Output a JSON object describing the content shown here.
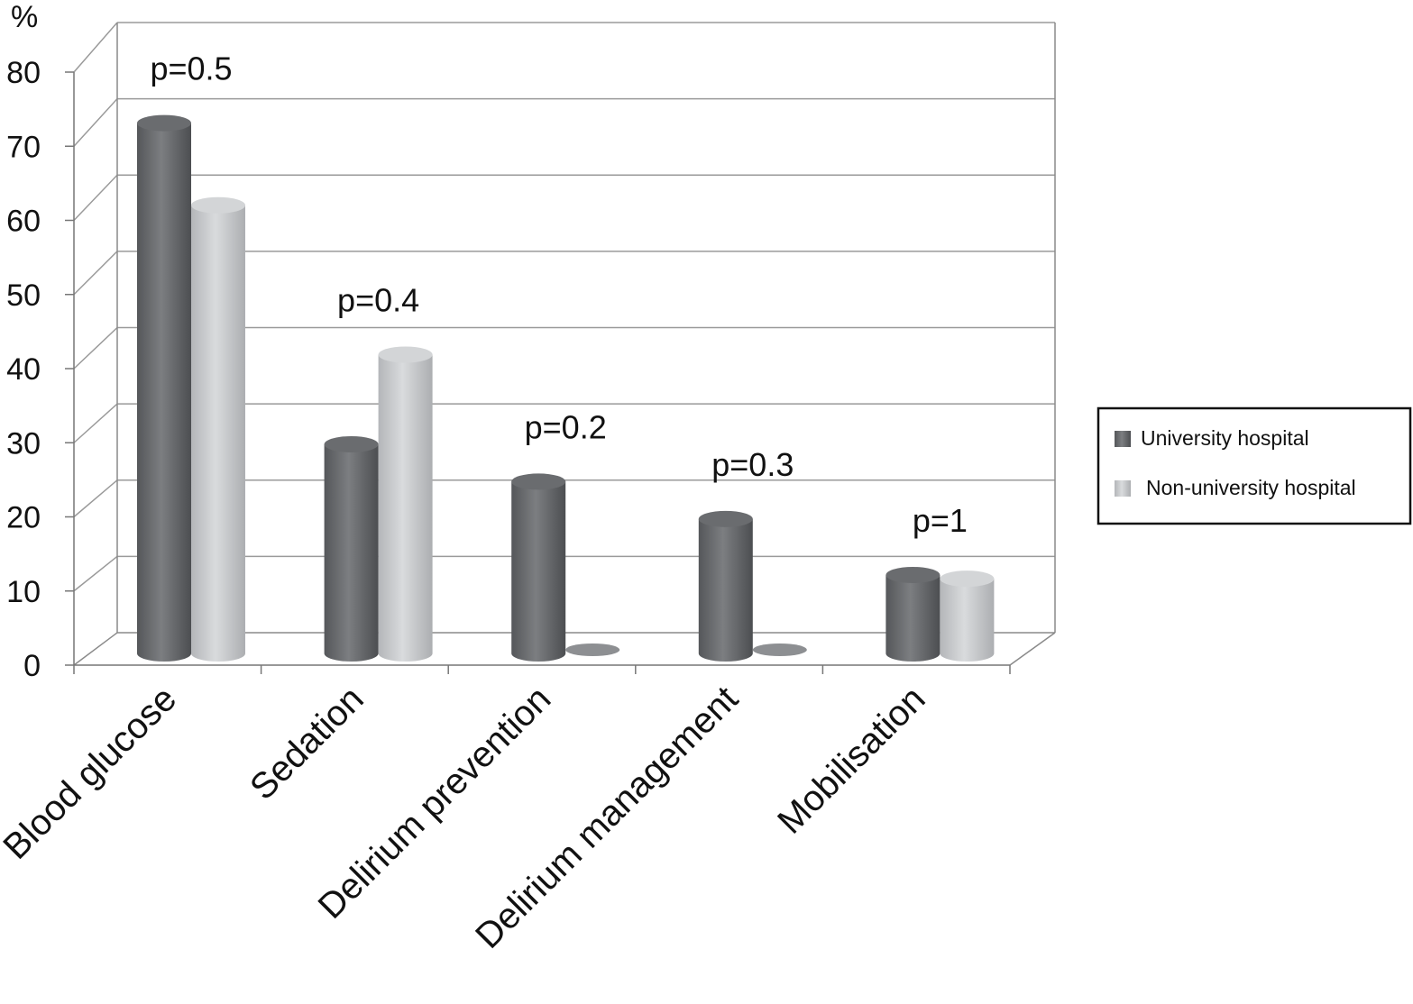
{
  "chart_data": {
    "type": "bar",
    "style": "3d-cylinder",
    "ylabel": "%",
    "ylim": [
      0,
      80
    ],
    "yticks": [
      "0",
      "10",
      "20",
      "30",
      "40",
      "50",
      "60",
      "70",
      "80"
    ],
    "grid": true,
    "legend_position": "right",
    "categories": [
      "Blood glucose",
      "Sedation",
      "Delirium prevention",
      "Delirium management",
      "Mobilisation"
    ],
    "annotations": [
      "p=0.5",
      "p=0.4",
      "p=0.2",
      "p=0.3",
      "p=1"
    ],
    "series": [
      {
        "name": "University hospital",
        "color": "#6e7073",
        "values": [
          71,
          28,
          23,
          18,
          10.5
        ]
      },
      {
        "name": "Non-university hospital",
        "color": "#c4c6c9",
        "values": [
          60,
          40,
          0,
          0,
          10
        ]
      }
    ]
  }
}
